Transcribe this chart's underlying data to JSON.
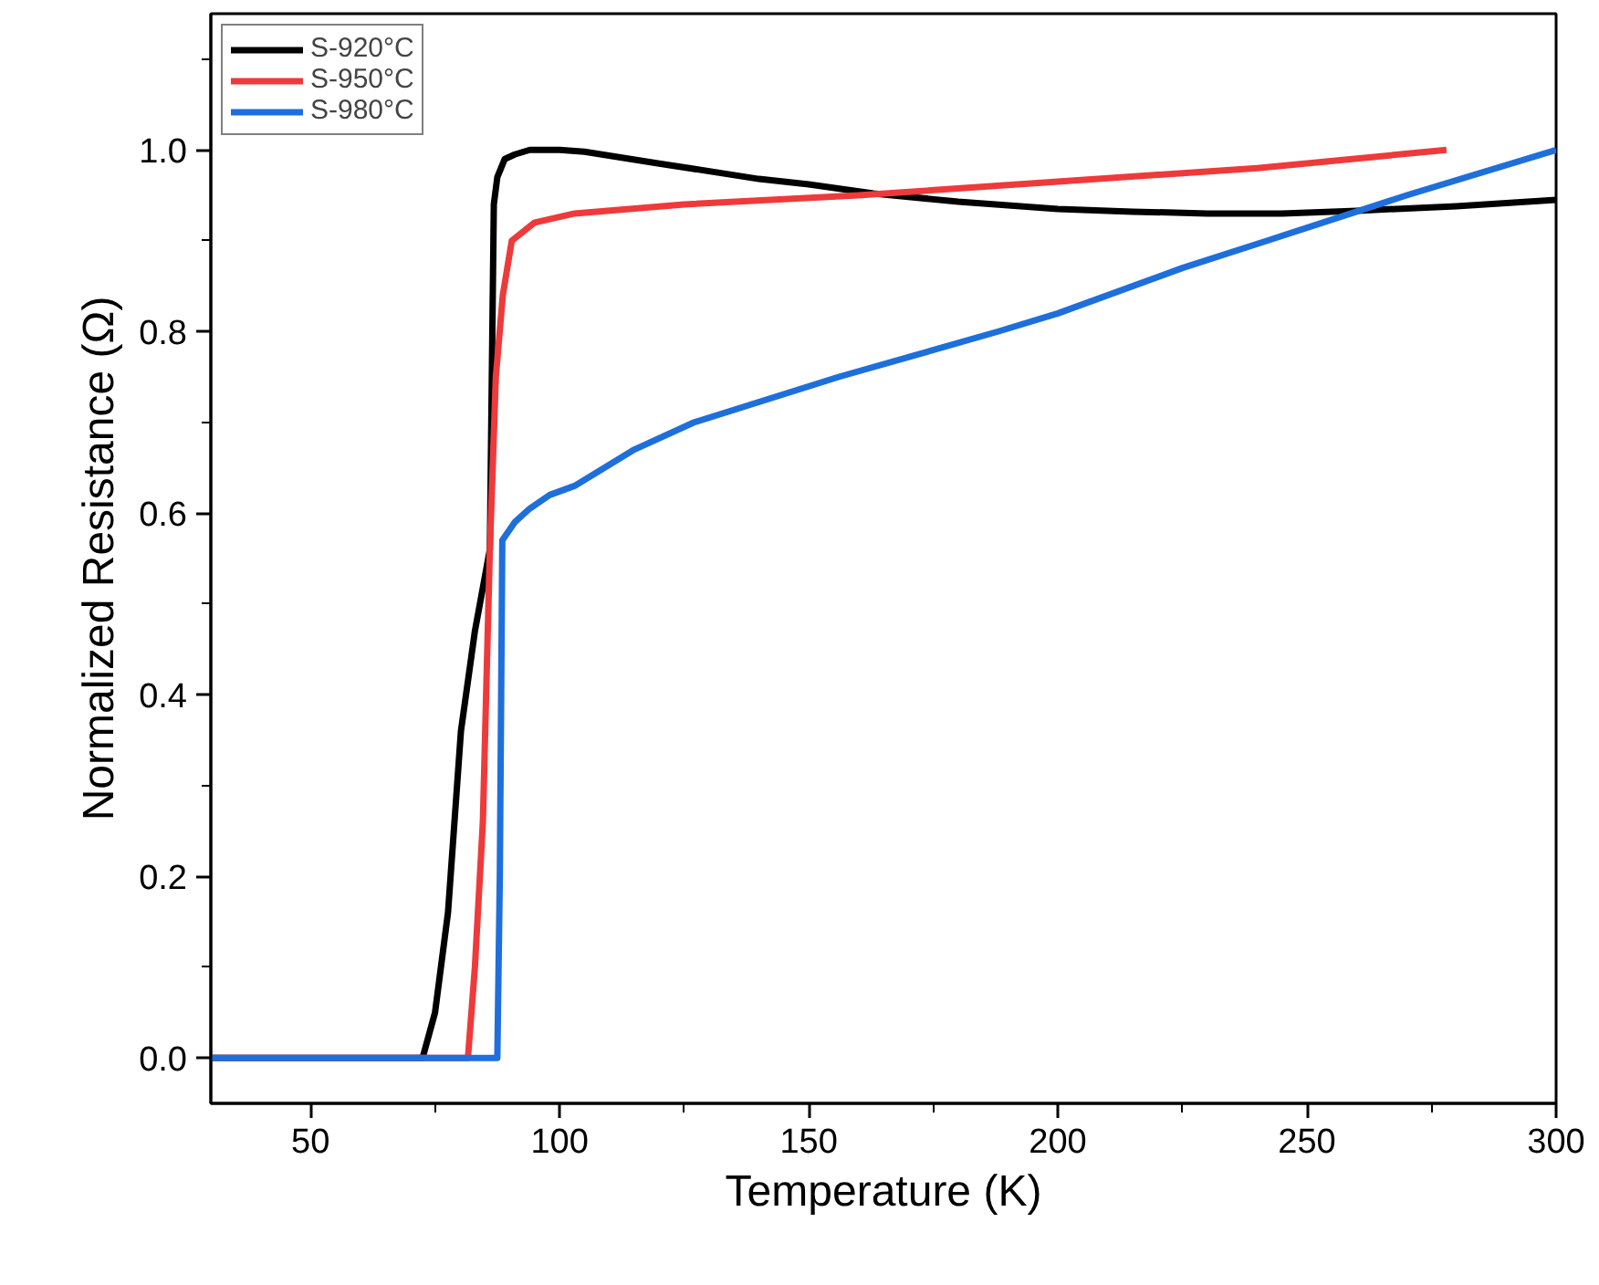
{
  "chart_data": {
    "type": "line",
    "xlabel": "Temperature (K)",
    "ylabel": "Normalized Resistance (Ω)",
    "xlim": [
      30,
      300
    ],
    "ylim": [
      -0.05,
      1.15
    ],
    "xticks": [
      50,
      {
        "value": 75,
        "label": null
      },
      100,
      {
        "value": 125,
        "label": null
      },
      150,
      {
        "value": 175,
        "label": null
      },
      200,
      {
        "value": 225,
        "label": null
      },
      250,
      {
        "value": 275,
        "label": null
      },
      300
    ],
    "yticks": [
      {
        "value": 0,
        "label": "0.0"
      },
      {
        "value": 0.1,
        "label": null
      },
      {
        "value": 0.2,
        "label": "0.2"
      },
      {
        "value": 0.3,
        "label": null
      },
      {
        "value": 0.4,
        "label": "0.4"
      },
      {
        "value": 0.5,
        "label": null
      },
      {
        "value": 0.6,
        "label": "0.6"
      },
      {
        "value": 0.7,
        "label": null
      },
      {
        "value": 0.8,
        "label": "0.8"
      },
      {
        "value": 0.9,
        "label": null
      },
      {
        "value": 1,
        "label": "1.0"
      },
      {
        "value": 1.1,
        "label": null
      }
    ],
    "grid": false,
    "legend": "top left",
    "line_style": "solid",
    "marker": "none",
    "series": [
      {
        "name": "S-920°C",
        "color": "#000000",
        "x": [
          30,
          60,
          72.5,
          75,
          77.6,
          80.2,
          83,
          86,
          86.5,
          86.8,
          87.5,
          89,
          91,
          94,
          97,
          100,
          105,
          120,
          140,
          150,
          163,
          180,
          200,
          215,
          230,
          245,
          260,
          280,
          300
        ],
        "values": [
          0,
          0,
          0,
          0.05,
          0.16,
          0.36,
          0.47,
          0.56,
          0.8,
          0.94,
          0.97,
          0.99,
          0.995,
          1.0,
          1.0,
          1.0,
          0.998,
          0.985,
          0.968,
          0.962,
          0.952,
          0.943,
          0.935,
          0.932,
          0.93,
          0.93,
          0.933,
          0.938,
          0.945
        ]
      },
      {
        "name": "S-950°C",
        "color": "#ee3a3a",
        "x": [
          30,
          60,
          81.6,
          83,
          84.6,
          86,
          87.2,
          88.6,
          90.4,
          95,
          103,
          125,
          160,
          200,
          240,
          278
        ],
        "values": [
          0,
          0,
          0,
          0.1,
          0.26,
          0.56,
          0.75,
          0.84,
          0.9,
          0.92,
          0.93,
          0.94,
          0.95,
          0.965,
          0.98,
          1.0
        ]
      },
      {
        "name": "S-980°C",
        "color": "#1e6fdc",
        "x": [
          30,
          60,
          87.5,
          88,
          88.5,
          91,
          94,
          98,
          103,
          115,
          127,
          156,
          188,
          200,
          225,
          242,
          270,
          300
        ],
        "values": [
          0,
          0,
          0,
          0.2,
          0.57,
          0.59,
          0.605,
          0.62,
          0.63,
          0.67,
          0.7,
          0.75,
          0.8,
          0.82,
          0.87,
          0.9,
          0.95,
          1.0
        ]
      }
    ]
  }
}
